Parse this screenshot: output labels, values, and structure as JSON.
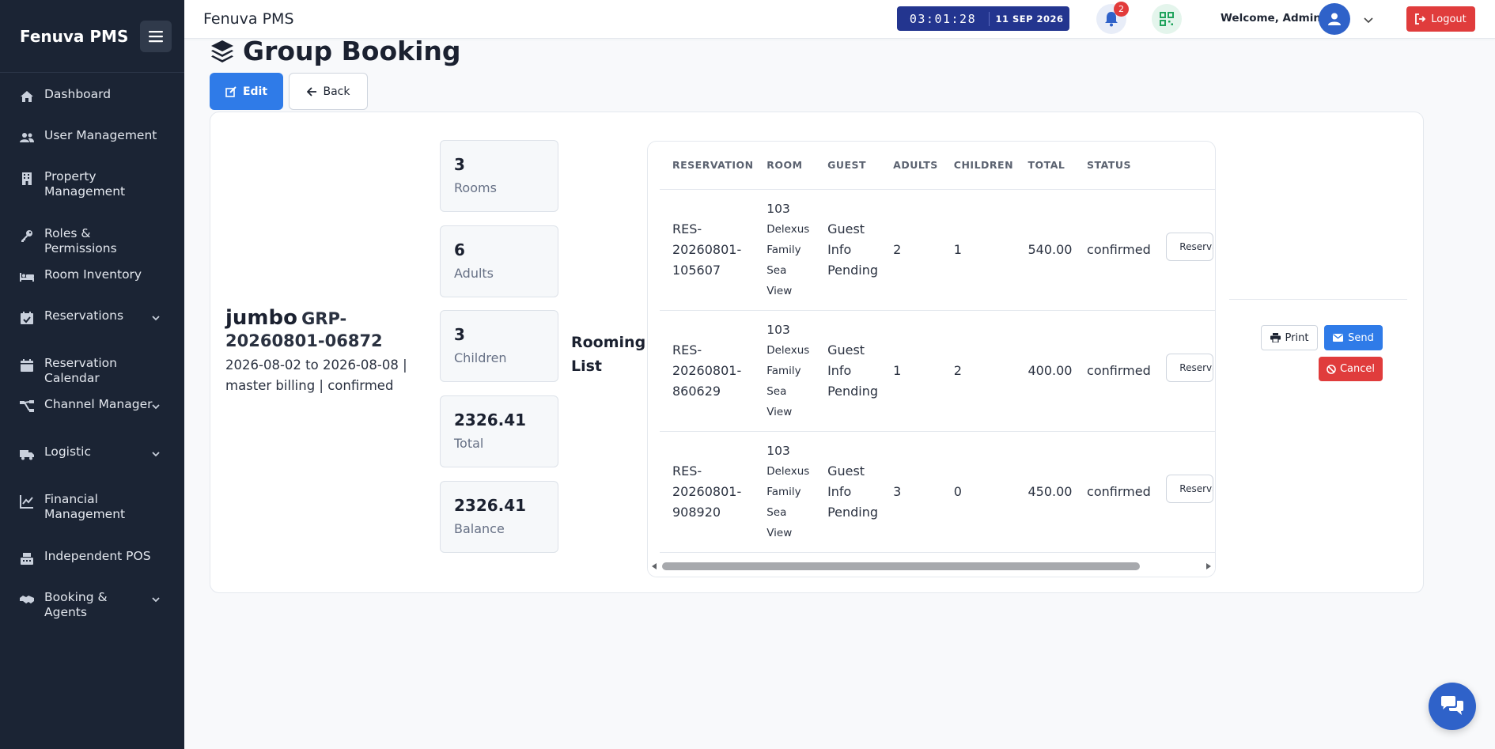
{
  "sidebar": {
    "brand": "Fenuva PMS",
    "items": [
      {
        "label": "Dashboard",
        "icon": "home-icon"
      },
      {
        "label": "User Management",
        "icon": "users-icon"
      },
      {
        "label": "Property Management",
        "icon": "building-icon"
      },
      {
        "label": "Roles & Permissions",
        "icon": "key-icon"
      },
      {
        "label": "Room Inventory",
        "icon": "bed-icon"
      },
      {
        "label": "Reservations",
        "icon": "calendar-check-icon",
        "expandable": true
      },
      {
        "label": "Reservation Calendar",
        "icon": "calendar-icon"
      },
      {
        "label": "Channel Manager",
        "icon": "sitemap-icon",
        "expandable": true
      },
      {
        "label": "Logistic",
        "icon": "truck-icon",
        "expandable": true
      },
      {
        "label": "Financial Management",
        "icon": "chart-line-icon"
      },
      {
        "label": "Independent POS",
        "icon": "cash-register-icon"
      },
      {
        "label": "Booking & Agents",
        "icon": "handshake-icon",
        "expandable": true
      }
    ]
  },
  "topbar": {
    "title": "Fenuva PMS",
    "clock_time": "03:01:28",
    "clock_date": "11 SEP 2026",
    "notification_count": "2",
    "welcome": "Welcome, Admin",
    "logout_label": "Logout"
  },
  "page": {
    "title": "Group Booking",
    "edit_label": "Edit",
    "back_label": "Back"
  },
  "group": {
    "name": "jumbo",
    "code": "GRP-20260801-06872",
    "meta": "2026-08-02 to 2026-08-08 | master billing | confirmed"
  },
  "stats": [
    {
      "value": "3",
      "label": "Rooms"
    },
    {
      "value": "6",
      "label": "Adults"
    },
    {
      "value": "3",
      "label": "Children"
    },
    {
      "value": "2326.41",
      "label": "Total"
    },
    {
      "value": "2326.41",
      "label": "Balance"
    }
  ],
  "rooming": {
    "title": "Rooming List",
    "columns": [
      "RESERVATION",
      "ROOM",
      "GUEST",
      "ADULTS",
      "CHILDREN",
      "TOTAL",
      "STATUS"
    ],
    "rows": [
      {
        "reservation": "RES-20260801-105607",
        "room_number": "103",
        "room_type": "Delexus Family Sea View",
        "guest": "Guest Info Pending",
        "adults": "2",
        "children": "1",
        "total": "540.00",
        "status": "confirmed",
        "action": "Reservation"
      },
      {
        "reservation": "RES-20260801-860629",
        "room_number": "103",
        "room_type": "Delexus Family Sea View",
        "guest": "Guest Info Pending",
        "adults": "1",
        "children": "2",
        "total": "400.00",
        "status": "confirmed",
        "action": "Reservation"
      },
      {
        "reservation": "RES-20260801-908920",
        "room_number": "103",
        "room_type": "Delexus Family Sea View",
        "guest": "Guest Info Pending",
        "adults": "3",
        "children": "0",
        "total": "450.00",
        "status": "confirmed",
        "action": "Reservation"
      }
    ]
  },
  "actions": {
    "print_label": "Print",
    "send_label": "Send",
    "cancel_label": "Cancel"
  },
  "colors": {
    "sidebar_bg": "#1b2434",
    "primary": "#2f7be8",
    "danger": "#e03c3c",
    "clock_bg": "#23358f"
  }
}
